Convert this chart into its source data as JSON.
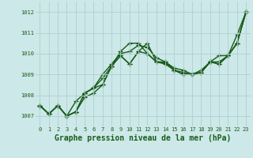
{
  "background_color": "#cce8e8",
  "grid_color": "#b0d0d0",
  "line_color": "#1a5c1a",
  "marker": "+",
  "markersize": 4,
  "linewidth": 1.0,
  "title": "Graphe pression niveau de la mer (hPa)",
  "title_fontsize": 7,
  "ylim": [
    1006.5,
    1012.5
  ],
  "xlim": [
    -0.5,
    23.5
  ],
  "yticks": [
    1007,
    1008,
    1009,
    1010,
    1011,
    1012
  ],
  "xticks": [
    0,
    1,
    2,
    3,
    4,
    5,
    6,
    7,
    8,
    9,
    10,
    11,
    12,
    13,
    14,
    15,
    16,
    17,
    18,
    19,
    20,
    21,
    22,
    23
  ],
  "tick_fontsize": 5,
  "series": [
    [
      1007.5,
      1007.1,
      1007.5,
      1007.0,
      1007.2,
      1007.9,
      1008.1,
      1008.5,
      1009.4,
      1010.1,
      1010.5,
      1010.5,
      1010.0,
      1009.6,
      1009.6,
      1009.2,
      1009.1,
      1009.0,
      1009.1,
      1009.6,
      1009.9,
      1009.9,
      1010.9,
      1012.0
    ],
    [
      1007.5,
      1007.1,
      1007.5,
      1007.0,
      1007.2,
      1008.1,
      1008.35,
      1008.8,
      1009.4,
      1009.9,
      1009.5,
      1010.1,
      1010.5,
      1009.6,
      1009.55,
      1009.2,
      1009.0,
      1009.0,
      1009.1,
      1009.6,
      1009.5,
      1009.9,
      1010.5,
      1012.0
    ],
    [
      1007.5,
      1007.1,
      1007.5,
      1007.0,
      1007.2,
      1008.1,
      1008.35,
      1008.5,
      1009.4,
      1009.9,
      1009.5,
      1010.1,
      1010.0,
      1009.6,
      1009.5,
      1009.2,
      1009.0,
      1009.0,
      1009.1,
      1009.6,
      1009.5,
      1009.9,
      1010.5,
      1012.0
    ],
    [
      1007.5,
      1007.1,
      1007.5,
      1007.0,
      1007.7,
      1008.1,
      1008.35,
      1009.0,
      1009.5,
      1010.0,
      1010.1,
      1010.4,
      1010.3,
      1009.8,
      1009.6,
      1009.3,
      1009.2,
      1009.0,
      1009.2,
      1009.6,
      1009.6,
      1009.9,
      1010.5,
      1012.0
    ]
  ]
}
